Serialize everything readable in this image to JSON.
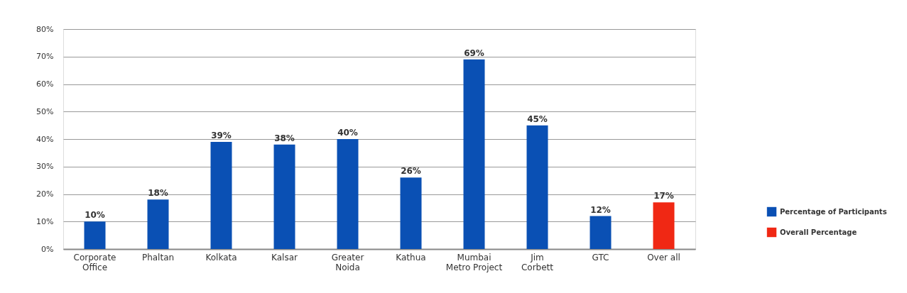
{
  "chart_data": {
    "type": "bar",
    "categories": [
      "Corporate\nOffice",
      "Phaltan",
      "Kolkata",
      "Kalsar",
      "Greater\nNoida",
      "Kathua",
      "Mumbai\nMetro Project",
      "Jim\nCorbett",
      "GTC",
      "Over all"
    ],
    "series": [
      {
        "name": "Percentage of Participants",
        "color": "#0a50b4",
        "values": [
          10,
          18,
          39,
          38,
          40,
          26,
          69,
          45,
          12,
          null
        ],
        "value_labels": [
          "10%",
          "18%",
          "39%",
          "38%",
          "40%",
          "26%",
          "69%",
          "45%",
          "12%",
          null
        ]
      },
      {
        "name": "Overall Percentage",
        "color": "#f02814",
        "values": [
          null,
          null,
          null,
          null,
          null,
          null,
          null,
          null,
          null,
          17
        ],
        "value_labels": [
          null,
          null,
          null,
          null,
          null,
          null,
          null,
          null,
          null,
          "17%"
        ]
      }
    ],
    "ylim": [
      0,
      80
    ],
    "yticks": [
      {
        "value": 0,
        "label": "0%"
      },
      {
        "value": 10,
        "label": "10%"
      },
      {
        "value": 20,
        "label": "20%"
      },
      {
        "value": 30,
        "label": "30%"
      },
      {
        "value": 40,
        "label": "40%"
      },
      {
        "value": 50,
        "label": "50%"
      },
      {
        "value": 60,
        "label": "60%"
      },
      {
        "value": 70,
        "label": "70%"
      },
      {
        "value": 80,
        "label": "80%"
      }
    ],
    "grid": "y",
    "legend": "bottom right"
  }
}
